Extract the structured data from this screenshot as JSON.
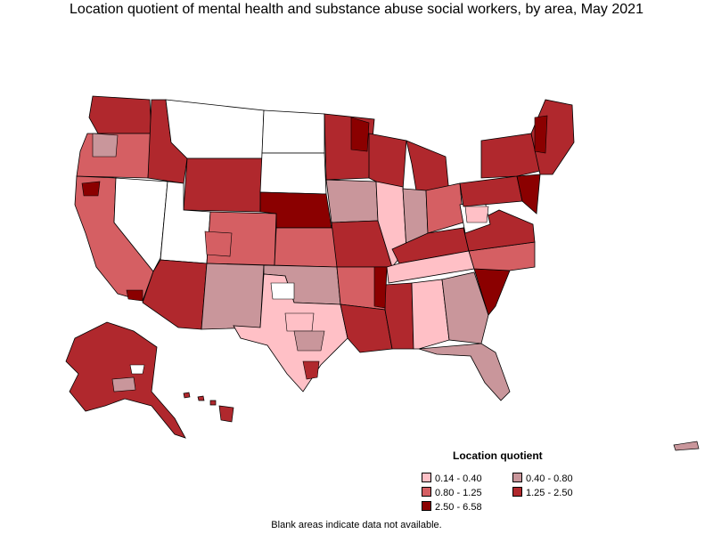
{
  "title": "Location quotient of mental health and substance abuse social workers, by area, May 2021",
  "legend": {
    "title": "Location quotient",
    "items": [
      {
        "label": "0.14 - 0.40",
        "color": "#ffc0c6"
      },
      {
        "label": "0.40 - 0.80",
        "color": "#c9969b"
      },
      {
        "label": "0.80 - 1.25",
        "color": "#d55f63"
      },
      {
        "label": "1.25 - 2.50",
        "color": "#b0282d"
      },
      {
        "label": "2.50 - 6.58",
        "color": "#8b0000"
      }
    ]
  },
  "note": "Blank areas indicate data not available."
}
